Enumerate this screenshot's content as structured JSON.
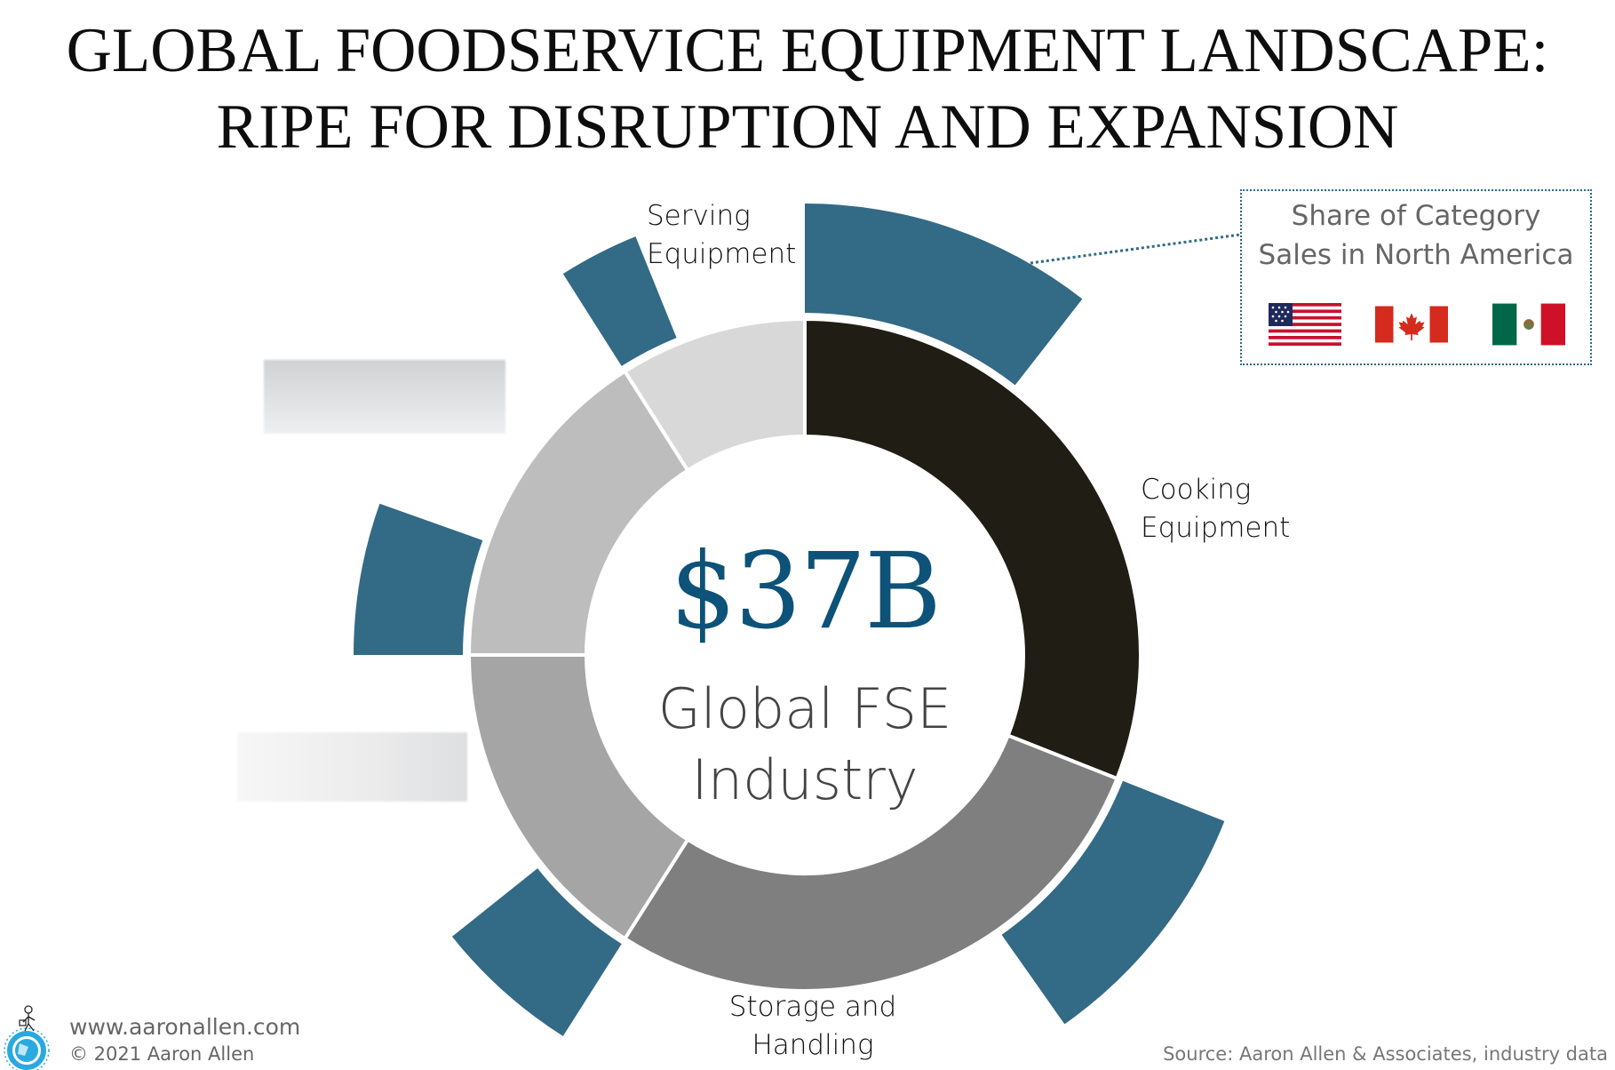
{
  "title": {
    "line1": "GLOBAL FOODSERVICE EQUIPMENT LANDSCAPE:",
    "line2": "RIPE FOR DISRUPTION AND EXPANSION"
  },
  "center": {
    "value": "$37B",
    "caption_line1": "Global FSE",
    "caption_line2": "Industry"
  },
  "labels": {
    "serving_line1": "Serving",
    "serving_line2": "Equipment",
    "cooking_line1": "Cooking",
    "cooking_line2": "Equipment",
    "storage_line1": "Storage and",
    "storage_line2": "Handling"
  },
  "legend": {
    "title_line1": "Share of Category",
    "title_line2": "Sales in North America",
    "flags": [
      "United States",
      "Canada",
      "Mexico"
    ]
  },
  "footer": {
    "website": "www.aaronallen.com",
    "copyright": "© 2021 Aaron Allen",
    "source": "Source: Aaron Allen & Associates, industry data"
  },
  "colors": {
    "north_america_share": "#336a86",
    "cooking": "#201e14",
    "storage": "#7f7f7f",
    "unlabeled_lower_left": "#a5a5a5",
    "unlabeled_upper_left": "#bdbdbd",
    "serving": "#d8d8d8",
    "center_value": "#0d5278"
  },
  "chart_data": {
    "type": "pie",
    "subtype": "donut with outer radial bars",
    "title": "GLOBAL FOODSERVICE EQUIPMENT LANDSCAPE: RIPE FOR DISRUPTION AND EXPANSION",
    "center_label": "$37B Global FSE Industry",
    "total": 37,
    "unit": "USD billions",
    "categories": [
      "Cooking Equipment",
      "Storage and Handling",
      "Unlabeled (lower left, obscured)",
      "Unlabeled (upper left, obscured)",
      "Serving Equipment"
    ],
    "series": [
      {
        "name": "Share of global FSE industry (%)",
        "values": [
          31,
          28,
          16,
          16,
          9
        ]
      },
      {
        "name": "Share of Category Sales in North America (angular share of category segment, %)",
        "values": [
          34,
          33,
          33,
          34,
          32
        ]
      }
    ],
    "legend": [
      "Share of Category Sales in North America"
    ],
    "legend_position": "top-right",
    "source": "Aaron Allen & Associates, industry data"
  }
}
